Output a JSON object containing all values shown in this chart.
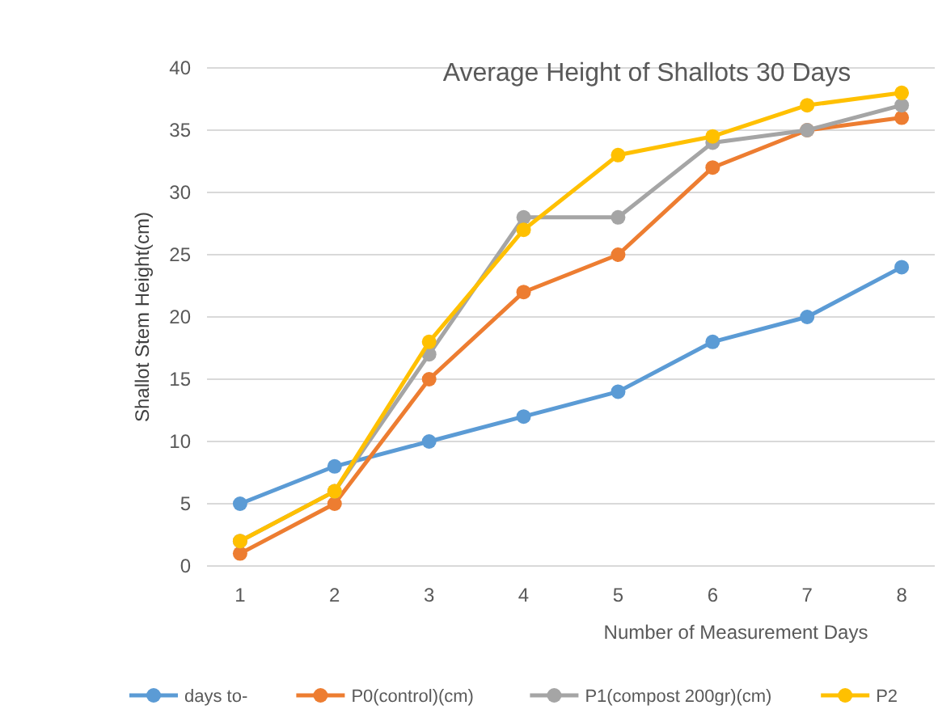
{
  "chart_data": {
    "type": "line",
    "title": "Average Height of Shallots 30 Days",
    "xlabel": "Number of Measurement Days",
    "ylabel": "Shallot Stem Height(cm)",
    "categories": [
      "1",
      "2",
      "3",
      "4",
      "5",
      "6",
      "7",
      "8"
    ],
    "series": [
      {
        "name": "days to-",
        "color": "#5b9bd5",
        "values": [
          5,
          8,
          10,
          12,
          14,
          18,
          20,
          24
        ]
      },
      {
        "name": "P0(control)(cm)",
        "color": "#ed7d31",
        "values": [
          1,
          5,
          15,
          22,
          25,
          32,
          35,
          36
        ]
      },
      {
        "name": "P1(compost 200gr)(cm)",
        "color": "#a5a5a5",
        "values": [
          2,
          6,
          17,
          28,
          28,
          34,
          35,
          37
        ]
      },
      {
        "name": "P2",
        "color": "#ffc000",
        "values": [
          2,
          6,
          18,
          27,
          33,
          34.5,
          37,
          38
        ]
      }
    ],
    "ylim": [
      0,
      40
    ],
    "yticks": [
      0,
      5,
      10,
      15,
      20,
      25,
      30,
      35,
      40
    ],
    "grid": "y",
    "legend": "bottom",
    "marker": "circle",
    "line_style": "solid"
  }
}
